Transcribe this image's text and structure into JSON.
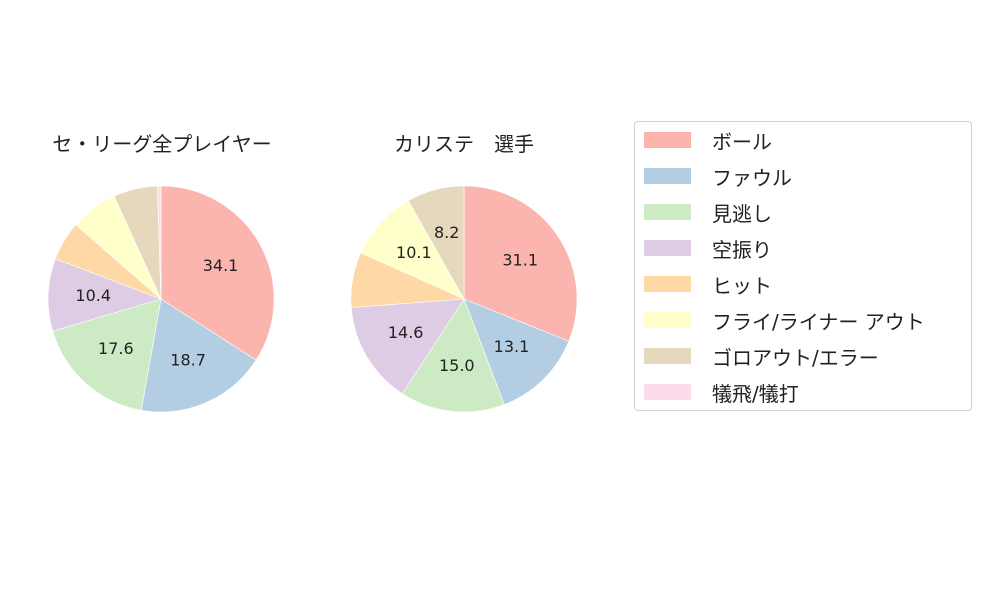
{
  "chart_data": [
    {
      "type": "pie",
      "title": "セ・リーグ全プレイヤー",
      "categories": [
        "ボール",
        "ファウル",
        "見逃し",
        "空振り",
        "ヒット",
        "フライ/ライナー アウト",
        "ゴロアウト/エラー",
        "犠飛/犠打"
      ],
      "values": [
        34.1,
        18.7,
        17.6,
        10.4,
        5.6,
        6.8,
        6.3,
        0.5
      ],
      "labels_shown": [
        "34.1",
        "18.7",
        "17.6",
        "10.4",
        "",
        "",
        "",
        ""
      ],
      "start_angle": 90,
      "direction": "clockwise"
    },
    {
      "type": "pie",
      "title": "カリステ　選手",
      "categories": [
        "ボール",
        "ファウル",
        "見逃し",
        "空振り",
        "ヒット",
        "フライ/ライナー アウト",
        "ゴロアウト/エラー",
        "犠飛/犠打"
      ],
      "values": [
        31.1,
        13.1,
        15.0,
        14.6,
        7.9,
        10.1,
        8.2,
        0.0
      ],
      "labels_shown": [
        "31.1",
        "13.1",
        "15.0",
        "14.6",
        "",
        "10.1",
        "8.2",
        ""
      ],
      "start_angle": 90,
      "direction": "clockwise"
    }
  ],
  "titles": {
    "left": "セ・リーグ全プレイヤー",
    "right": "カリステ　選手"
  },
  "legend": {
    "items": [
      {
        "label": "ボール",
        "color": "#fbb4ae"
      },
      {
        "label": "ファウル",
        "color": "#b3cde3"
      },
      {
        "label": "見逃し",
        "color": "#ccebc5"
      },
      {
        "label": "空振り",
        "color": "#decbe4"
      },
      {
        "label": "ヒット",
        "color": "#fed9a6"
      },
      {
        "label": "フライ/ライナー アウト",
        "color": "#ffffcc"
      },
      {
        "label": "ゴロアウト/エラー",
        "color": "#e5d8bd"
      },
      {
        "label": "犠飛/犠打",
        "color": "#fddaec"
      }
    ]
  }
}
